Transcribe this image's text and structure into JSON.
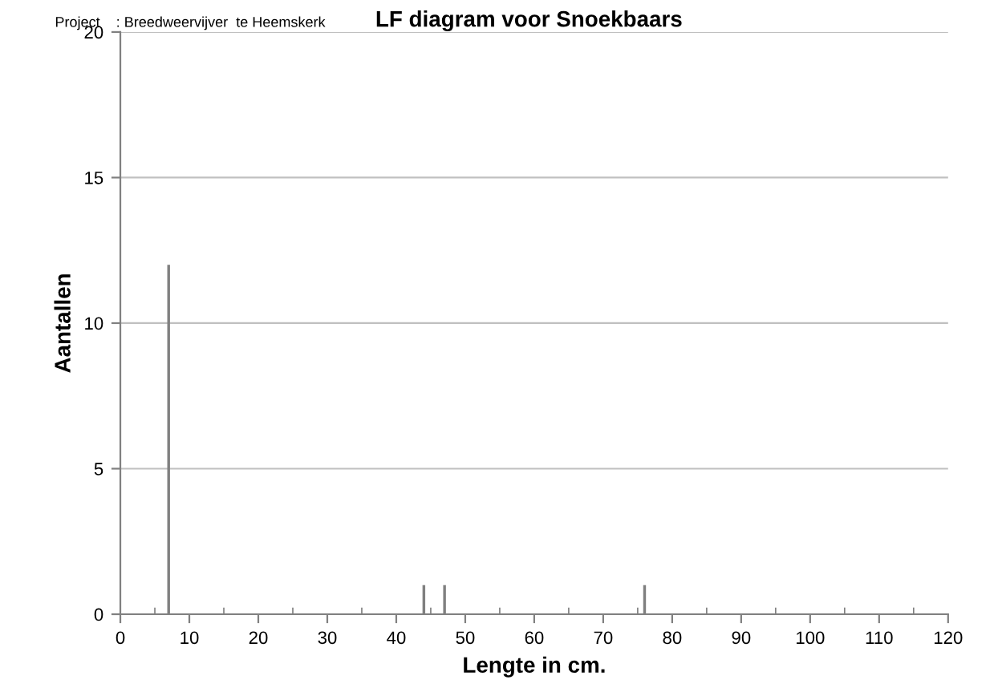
{
  "chart_data": {
    "type": "bar",
    "title": "LF diagram voor Snoekbaars",
    "xlabel": "Lengte in cm.",
    "ylabel": "Aantallen",
    "annotations": [
      "Project    : Breedweervijver  te Heemskerk"
    ],
    "x": [
      7,
      44,
      47,
      76
    ],
    "values": [
      12,
      1,
      1,
      1
    ],
    "color": "#808080",
    "xlim": [
      0,
      120
    ],
    "xticks": [
      0,
      10,
      20,
      30,
      40,
      50,
      60,
      70,
      80,
      90,
      100,
      110,
      120
    ],
    "ylim": [
      0,
      20
    ],
    "yticks": [
      0,
      5,
      10,
      15,
      20
    ],
    "grid": "y"
  }
}
